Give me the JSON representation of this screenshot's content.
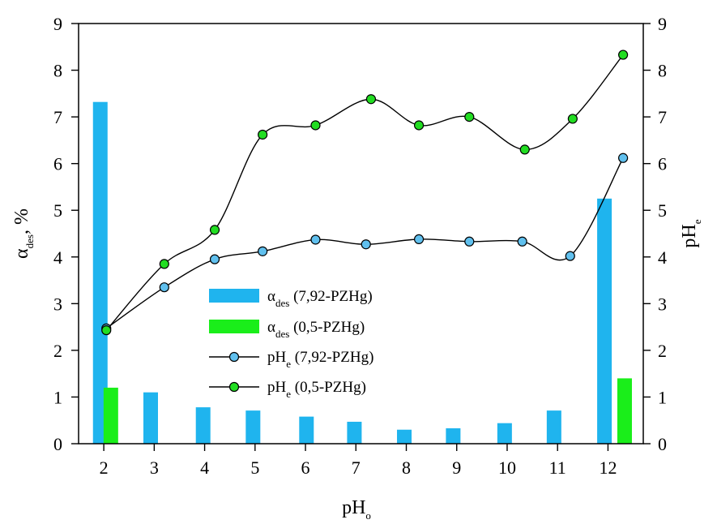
{
  "chart_data": {
    "type": "bar",
    "title": "",
    "xlabel": {
      "main": "pH",
      "sub": "o"
    },
    "ylabel_left": {
      "main": "α",
      "sub": "des",
      "rest": ", %"
    },
    "ylabel_right": {
      "main": "pH",
      "sub": "e"
    },
    "ylim_left": [
      0,
      9
    ],
    "ylim_right": [
      0,
      9
    ],
    "xlim": [
      1.5,
      12.7
    ],
    "yticks": [
      "0",
      "1",
      "2",
      "3",
      "4",
      "5",
      "6",
      "7",
      "8",
      "9"
    ],
    "xticks": [
      "2",
      "3",
      "4",
      "5",
      "6",
      "7",
      "8",
      "9",
      "10",
      "11",
      "12"
    ],
    "bar_series": [
      {
        "name": "α_des (7,92-PZHg)",
        "legend": {
          "main": "α",
          "sub": "des",
          "rest": " (7,92-PZHg)"
        },
        "color": "#1fb4ee",
        "x": [
          1.93,
          2.93,
          3.97,
          4.96,
          6.02,
          6.97,
          7.96,
          8.93,
          9.95,
          10.93,
          11.93
        ],
        "values": [
          7.32,
          1.1,
          0.78,
          0.71,
          0.58,
          0.47,
          0.3,
          0.33,
          0.44,
          0.71,
          5.25
        ]
      },
      {
        "name": "α_des (0,5-PZHg)",
        "legend": {
          "main": "α",
          "sub": "des",
          "rest": " (0,5-PZHg)"
        },
        "color": "#1aee1a",
        "x": [
          2.14,
          12.33
        ],
        "values": [
          1.2,
          1.4
        ]
      }
    ],
    "line_series": [
      {
        "name": "pH_e (7,92-PZHg)",
        "legend": {
          "main": "pH",
          "sub": "e",
          "rest": " (7,92-PZHg)"
        },
        "marker_color": "#60c0ee",
        "x": [
          2.05,
          3.2,
          4.2,
          5.15,
          6.2,
          7.2,
          8.25,
          9.25,
          10.3,
          11.25,
          12.3
        ],
        "y": [
          2.47,
          3.35,
          3.95,
          4.12,
          4.37,
          4.27,
          4.38,
          4.33,
          4.33,
          4.02,
          6.12
        ]
      },
      {
        "name": "pH_e (0,5-PZHg)",
        "legend": {
          "main": "pH",
          "sub": "e",
          "rest": " (0,5-PZHg)"
        },
        "marker_color": "#22dd22",
        "x": [
          2.05,
          3.2,
          4.2,
          5.15,
          6.2,
          7.3,
          8.25,
          9.25,
          10.35,
          11.3,
          12.3
        ],
        "y": [
          2.43,
          3.85,
          4.58,
          6.62,
          6.82,
          7.38,
          6.82,
          7.0,
          6.3,
          6.96,
          8.33
        ]
      }
    ],
    "legend_placement": "center-left",
    "grid": false
  }
}
